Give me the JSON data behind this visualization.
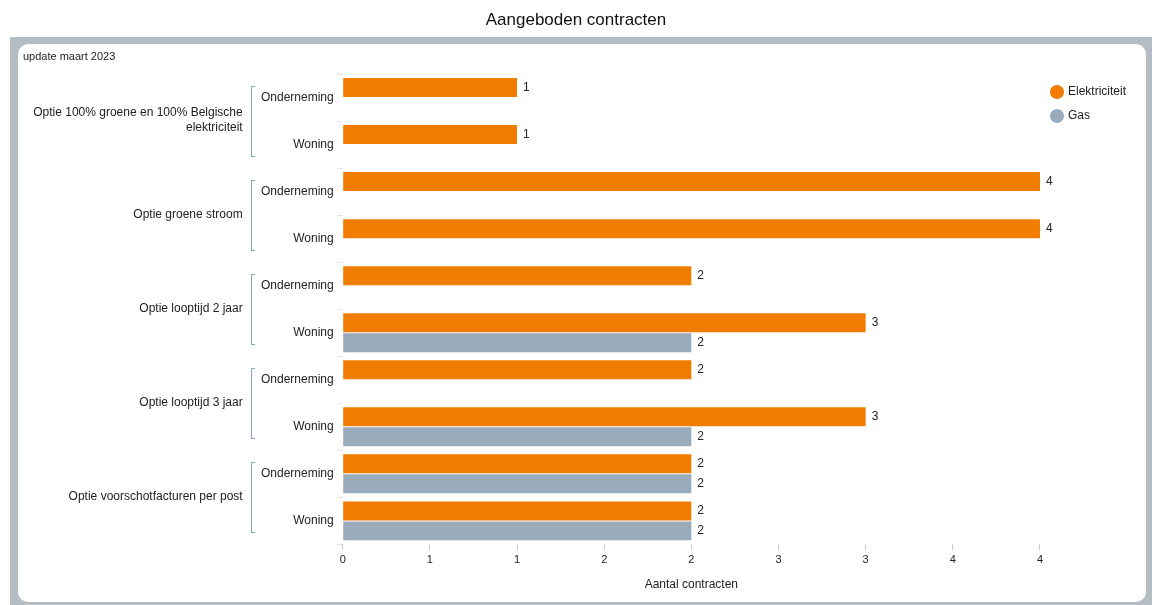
{
  "chart_data": {
    "type": "bar",
    "orientation": "horizontal",
    "title": "Aangeboden contracten",
    "xlabel": "Aantal contracten",
    "categories": [
      "Onderneming",
      "Woning",
      "Onderneming",
      "Woning",
      "Onderneming",
      "Woning",
      "Onderneming",
      "Woning",
      "Onderneming",
      "Woning"
    ],
    "annotations": [
      "update maart 2023",
      "Optie 100% groene en 100% Belgische elektriciteit",
      "Optie groene stroom",
      "Optie looptijd 2 jaar",
      "Optie looptijd 3 jaar",
      "Optie voorschotfacturen per post"
    ],
    "series": [
      {
        "name": "Elektriciteit",
        "color": "#f07c00",
        "values": [
          1,
          1,
          4,
          4,
          2,
          3,
          2,
          3,
          2,
          2
        ]
      },
      {
        "name": "Gas",
        "color": "#9aabbb",
        "values": [
          null,
          null,
          null,
          null,
          null,
          2,
          null,
          2,
          2,
          2
        ]
      }
    ],
    "xlim": [
      0,
      4
    ],
    "xticks": [
      0,
      {
        "value": 0.5,
        "label": "1"
      },
      1,
      {
        "value": 1.5,
        "label": "2"
      },
      2,
      {
        "value": 2.5,
        "label": "3"
      },
      3,
      {
        "value": 3.5,
        "label": "4"
      },
      4
    ],
    "data_labels": true,
    "grid": false,
    "legend": "top right"
  }
}
